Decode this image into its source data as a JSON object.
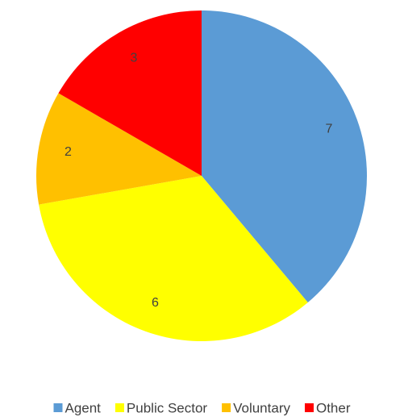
{
  "chart_data": {
    "type": "pie",
    "categories": [
      "Agent",
      "Public Sector",
      "Voluntary",
      "Other"
    ],
    "values": [
      7,
      6,
      2,
      3
    ],
    "colors": [
      "#5b9bd5",
      "#ffff00",
      "#ffc000",
      "#ff0000"
    ],
    "legend": "bottom"
  }
}
